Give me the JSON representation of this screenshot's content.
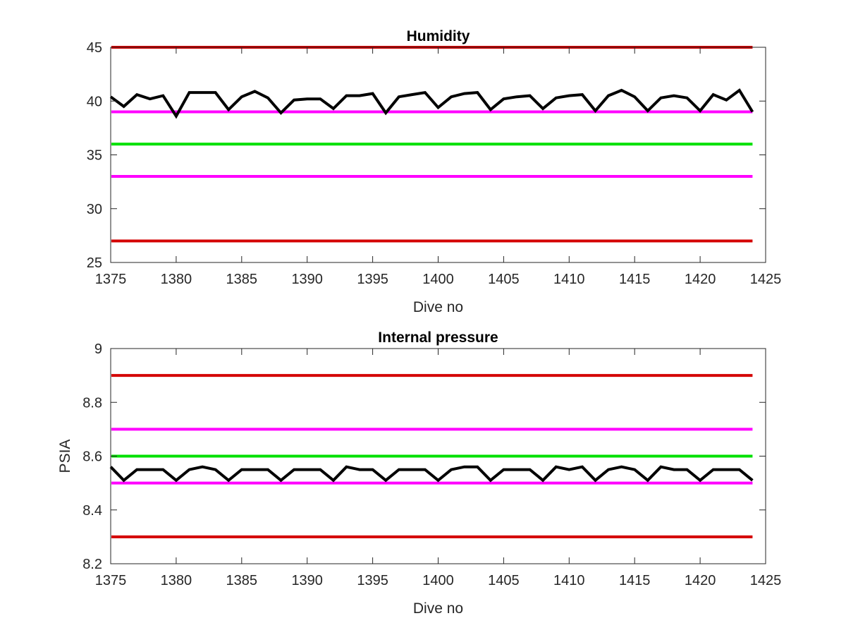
{
  "chart_data": [
    {
      "type": "line",
      "title": "Humidity",
      "xlabel": "Dive no",
      "ylabel": "",
      "xlim": [
        1375,
        1425
      ],
      "ylim": [
        25,
        45
      ],
      "xticks": [
        1375,
        1380,
        1385,
        1390,
        1395,
        1400,
        1405,
        1410,
        1415,
        1420,
        1425
      ],
      "yticks": [
        25,
        30,
        35,
        40,
        45
      ],
      "xtick_labels": [
        "1375",
        "1380",
        "1385",
        "1390",
        "1395",
        "1400",
        "1405",
        "1410",
        "1415",
        "1420",
        "1425"
      ],
      "ytick_labels": [
        "25",
        "30",
        "35",
        "40",
        "45"
      ],
      "grid": false,
      "reference_lines": [
        {
          "y": 45,
          "color": "#d40000"
        },
        {
          "y": 39,
          "color": "#ff00ff"
        },
        {
          "y": 36,
          "color": "#00e000"
        },
        {
          "y": 33,
          "color": "#ff00ff"
        },
        {
          "y": 27,
          "color": "#d40000"
        }
      ],
      "series": [
        {
          "color": "#000000",
          "x": [
            1375,
            1376,
            1377,
            1378,
            1379,
            1380,
            1381,
            1382,
            1383,
            1384,
            1385,
            1386,
            1387,
            1388,
            1389,
            1390,
            1391,
            1392,
            1393,
            1394,
            1395,
            1396,
            1397,
            1398,
            1399,
            1400,
            1401,
            1402,
            1403,
            1404,
            1405,
            1406,
            1407,
            1408,
            1409,
            1410,
            1411,
            1412,
            1413,
            1414,
            1415,
            1416,
            1417,
            1418,
            1419,
            1420,
            1421,
            1422,
            1423,
            1424
          ],
          "y": [
            40.4,
            39.5,
            40.6,
            40.2,
            40.5,
            38.6,
            40.8,
            40.8,
            40.8,
            39.2,
            40.4,
            40.9,
            40.3,
            38.9,
            40.1,
            40.2,
            40.2,
            39.3,
            40.5,
            40.5,
            40.7,
            38.9,
            40.4,
            40.6,
            40.8,
            39.4,
            40.4,
            40.7,
            40.8,
            39.2,
            40.2,
            40.4,
            40.5,
            39.3,
            40.3,
            40.5,
            40.6,
            39.1,
            40.5,
            41.0,
            40.4,
            39.1,
            40.3,
            40.5,
            40.3,
            39.1,
            40.6,
            40.1,
            41.0,
            39.0
          ]
        }
      ]
    },
    {
      "type": "line",
      "title": "Internal pressure",
      "xlabel": "Dive no",
      "ylabel": "PSIA",
      "xlim": [
        1375,
        1425
      ],
      "ylim": [
        8.2,
        9.0
      ],
      "xticks": [
        1375,
        1380,
        1385,
        1390,
        1395,
        1400,
        1405,
        1410,
        1415,
        1420,
        1425
      ],
      "yticks": [
        8.2,
        8.4,
        8.6,
        8.8,
        9.0
      ],
      "xtick_labels": [
        "1375",
        "1380",
        "1385",
        "1390",
        "1395",
        "1400",
        "1405",
        "1410",
        "1415",
        "1420",
        "1425"
      ],
      "ytick_labels": [
        "8.2",
        "8.4",
        "8.6",
        "8.8",
        "9"
      ],
      "grid": false,
      "reference_lines": [
        {
          "y": 8.9,
          "color": "#d40000"
        },
        {
          "y": 8.7,
          "color": "#ff00ff"
        },
        {
          "y": 8.6,
          "color": "#00e000"
        },
        {
          "y": 8.5,
          "color": "#ff00ff"
        },
        {
          "y": 8.3,
          "color": "#d40000"
        }
      ],
      "series": [
        {
          "color": "#000000",
          "x": [
            1375,
            1376,
            1377,
            1378,
            1379,
            1380,
            1381,
            1382,
            1383,
            1384,
            1385,
            1386,
            1387,
            1388,
            1389,
            1390,
            1391,
            1392,
            1393,
            1394,
            1395,
            1396,
            1397,
            1398,
            1399,
            1400,
            1401,
            1402,
            1403,
            1404,
            1405,
            1406,
            1407,
            1408,
            1409,
            1410,
            1411,
            1412,
            1413,
            1414,
            1415,
            1416,
            1417,
            1418,
            1419,
            1420,
            1421,
            1422,
            1423,
            1424
          ],
          "y": [
            8.56,
            8.51,
            8.55,
            8.55,
            8.55,
            8.51,
            8.55,
            8.56,
            8.55,
            8.51,
            8.55,
            8.55,
            8.55,
            8.51,
            8.55,
            8.55,
            8.55,
            8.51,
            8.56,
            8.55,
            8.55,
            8.51,
            8.55,
            8.55,
            8.55,
            8.51,
            8.55,
            8.56,
            8.56,
            8.51,
            8.55,
            8.55,
            8.55,
            8.51,
            8.56,
            8.55,
            8.56,
            8.51,
            8.55,
            8.56,
            8.55,
            8.51,
            8.56,
            8.55,
            8.55,
            8.51,
            8.55,
            8.55,
            8.55,
            8.51
          ]
        }
      ]
    }
  ]
}
